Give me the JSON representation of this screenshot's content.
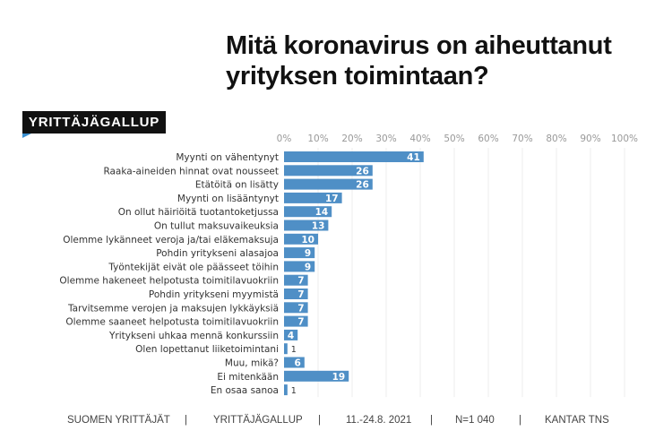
{
  "title_line1": "Mitä koronavirus on aiheuttanut",
  "title_line2": "yrityksen toimintaan?",
  "logo": "YRITTÄJÄGALLUP",
  "colors": {
    "bar": "#4f8fc6",
    "grid": "#eeeeee"
  },
  "chart_data": {
    "type": "bar",
    "orientation": "horizontal",
    "title": "Mitä koronavirus on aiheuttanut yrityksen toimintaan?",
    "xlim": [
      0,
      100
    ],
    "xticks": [
      "0%",
      "10%",
      "20%",
      "30%",
      "40%",
      "50%",
      "60%",
      "70%",
      "80%",
      "90%",
      "100%"
    ],
    "grid": true,
    "categories": [
      "Myynti on vähentynyt",
      "Raaka-aineiden hinnat ovat nousseet",
      "Etätöitä on lisätty",
      "Myynti on lisääntynyt",
      "On ollut häiriöitä tuotantoketjussa",
      "On tullut maksuvaikeuksia",
      "Olemme lykänneet veroja ja/tai eläkemaksuja",
      "Pohdin yritykseni alasajoa",
      "Työntekijät eivät ole päässeet töihin",
      "Olemme hakeneet helpotusta toimitilavuokriin",
      "Pohdin yritykseni myymistä",
      "Tarvitsemme verojen ja maksujen lykkäyksiä",
      "Olemme saaneet helpotusta toimitilavuokriin",
      "Yritykseni uhkaa mennä konkurssiin",
      "Olen lopettanut liiketoimintani",
      "Muu, mikä?",
      "Ei mitenkään",
      "En osaa sanoa"
    ],
    "values": [
      41,
      26,
      26,
      17,
      14,
      13,
      10,
      9,
      9,
      7,
      7,
      7,
      7,
      4,
      1,
      6,
      19,
      1
    ]
  },
  "footer": [
    "SUOMEN YRITTÄJÄT",
    "|",
    "YRITTÄJÄGALLUP",
    "|",
    "11.-24.8. 2021",
    "|",
    "N=1 040",
    "|",
    "KANTAR TNS"
  ]
}
